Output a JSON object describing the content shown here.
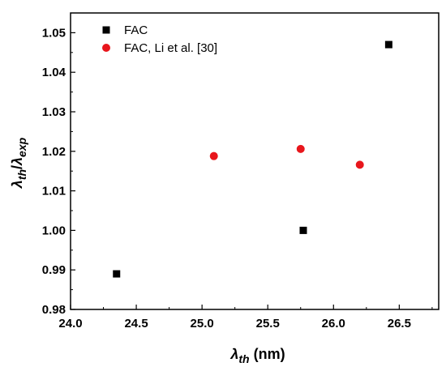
{
  "chart_data": {
    "type": "scatter",
    "xlim": [
      24.0,
      26.8
    ],
    "ylim": [
      0.98,
      1.055
    ],
    "x_ticks": [
      "24.0",
      "24.5",
      "25.0",
      "25.5",
      "26.0",
      "26.5"
    ],
    "y_ticks": [
      "0.98",
      "0.99",
      "1.00",
      "1.01",
      "1.02",
      "1.03",
      "1.04",
      "1.05"
    ],
    "xlabel": {
      "symbol": "λ",
      "subscript": "th",
      "unit": " (nm)"
    },
    "ylabel": {
      "symbol1": "λ",
      "sub1": "th",
      "slash": "/",
      "symbol2": "λ",
      "sub2": "exp"
    },
    "grid": false,
    "legend_position": "top-left",
    "series": [
      {
        "name": "FAC",
        "marker": "square",
        "color": "#000000",
        "points": [
          {
            "x": 24.35,
            "y": 0.989
          },
          {
            "x": 25.77,
            "y": 1.0
          },
          {
            "x": 26.42,
            "y": 1.047
          }
        ]
      },
      {
        "name": "FAC, Li et al. [30]",
        "marker": "circle",
        "color": "#e8161c",
        "points": [
          {
            "x": 25.09,
            "y": 1.0188
          },
          {
            "x": 25.75,
            "y": 1.0206
          },
          {
            "x": 26.2,
            "y": 1.0166
          }
        ]
      }
    ]
  }
}
